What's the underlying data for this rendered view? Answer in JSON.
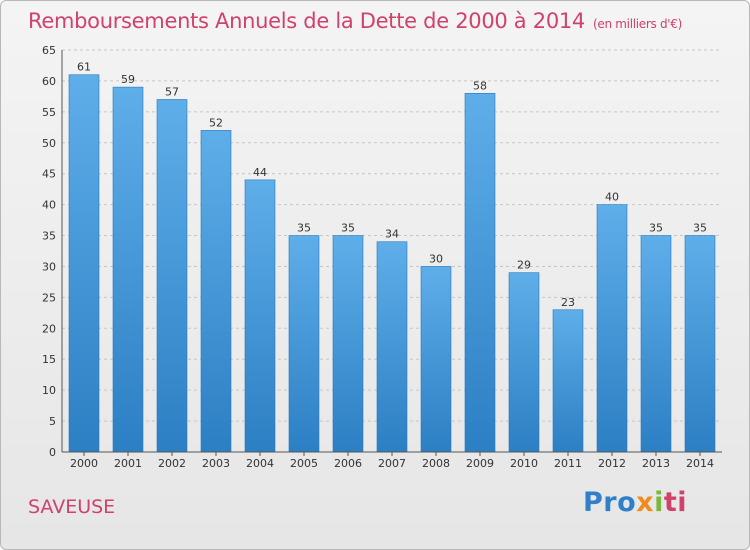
{
  "header": {
    "title": "Remboursements Annuels de la Dette de 2000 à 2014",
    "subtitle": "(en milliers d'€)"
  },
  "footer": {
    "place": "SAVEUSE",
    "brand_parts": [
      "Pro",
      "x",
      "i",
      "ti"
    ]
  },
  "colors": {
    "accent": "#d0416b",
    "bar_top": "#5eaee9",
    "bar_bottom": "#2c7fc3"
  },
  "chart_data": {
    "type": "bar",
    "title": "Remboursements Annuels de la Dette de 2000 à 2014",
    "subtitle": "(en milliers d'€)",
    "categories": [
      "2000",
      "2001",
      "2002",
      "2003",
      "2004",
      "2005",
      "2006",
      "2007",
      "2008",
      "2009",
      "2010",
      "2011",
      "2012",
      "2013",
      "2014"
    ],
    "values": [
      61,
      59,
      57,
      52,
      44,
      35,
      35,
      34,
      30,
      58,
      29,
      23,
      40,
      35,
      35
    ],
    "ylim": [
      0,
      65
    ],
    "yticks": [
      0,
      5,
      10,
      15,
      20,
      25,
      30,
      35,
      40,
      45,
      50,
      55,
      60,
      65
    ],
    "grid": true,
    "data_labels": true,
    "legend": "none"
  }
}
